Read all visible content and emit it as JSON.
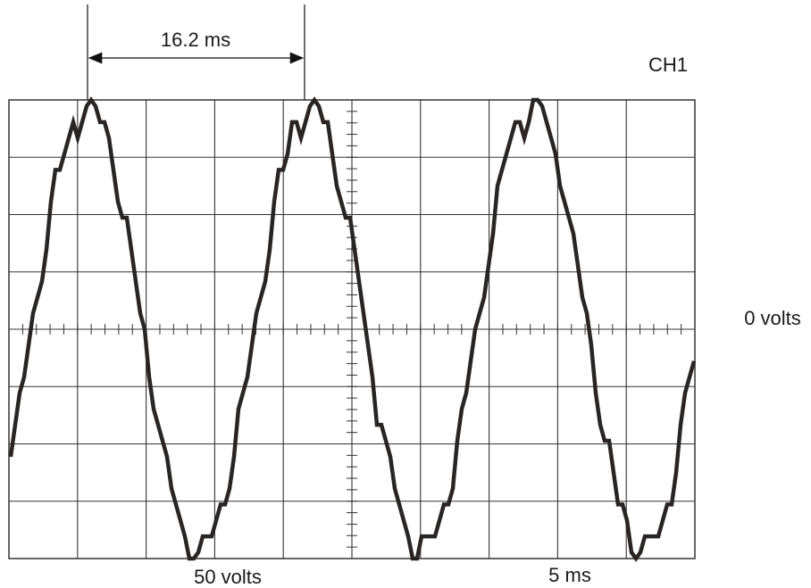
{
  "labels": {
    "period": "16.2 ms",
    "channel": "CH1",
    "zero_reference": "0 volts",
    "volts_per_division": "50 volts",
    "time_per_division": "5 ms"
  },
  "scope": {
    "grid_divisions_x": 10,
    "grid_divisions_y": 8,
    "minor_ticks_per_division": 5
  },
  "colors": {
    "grid": "#333333",
    "trace": "#2b2424",
    "background": "#ffffff"
  }
}
